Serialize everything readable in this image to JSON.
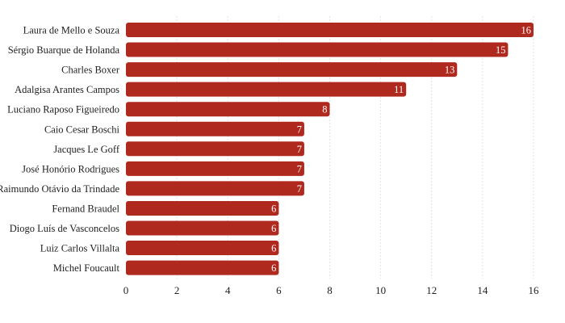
{
  "chart_data": {
    "type": "bar",
    "orientation": "horizontal",
    "categories": [
      "Laura de Mello e Souza",
      "Sérgio Buarque de Holanda",
      "Charles Boxer",
      "Adalgisa Arantes Campos",
      "Luciano Raposo Figueiredo",
      "Caio Cesar Boschi",
      "Jacques Le Goff",
      "José Honório Rodrigues",
      "Raimundo Otávio da Trindade",
      "Fernand Braudel",
      "Diogo Luís de Vasconcelos",
      "Luiz Carlos Villalta",
      "Michel Foucault"
    ],
    "values": [
      16,
      15,
      13,
      11,
      8,
      7,
      7,
      7,
      7,
      6,
      6,
      6,
      6
    ],
    "value_labels": [
      "16",
      "15",
      "13",
      "11",
      "8",
      "7",
      "7",
      "7",
      "7",
      "6",
      "6",
      "6",
      "6"
    ],
    "xticks": [
      "0",
      "2",
      "4",
      "6",
      "8",
      "10",
      "12",
      "14",
      "16"
    ],
    "xlim": [
      0,
      16
    ],
    "grid": true,
    "colors": {
      "bar": "#b0291f",
      "bar_label": "#ffffff",
      "text": "#222222",
      "grid": "#e3e3e3"
    }
  }
}
